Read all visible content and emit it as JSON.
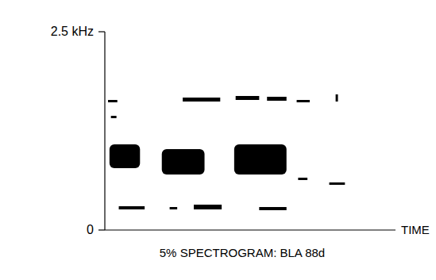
{
  "chart_data": {
    "type": "spectrogram",
    "title": "5% SPECTROGRAM: BLA 88d",
    "x_label": "TIME",
    "xlim": [
      0,
      100
    ],
    "ylim": [
      0,
      2.5
    ],
    "yticks": [
      0,
      {
        "value": 2.5,
        "label": "2.5 kHz"
      }
    ],
    "tick_labels": "y",
    "color": "#000000",
    "t_start": [
      1.6,
      19.6,
      44.5,
      4.8,
      22.3,
      30.6,
      53.1,
      1.1,
      2.1,
      26.8,
      45.0,
      55.8,
      66.0,
      79.4,
      66.5,
      77.2
    ],
    "t_end": [
      12.1,
      34.3,
      62.5,
      13.7,
      24.9,
      40.2,
      62.5,
      4.3,
      4.0,
      39.7,
      53.1,
      62.5,
      70.5,
      80.2,
      69.7,
      82.6
    ],
    "f_low": [
      0.78,
      0.7,
      0.7,
      0.26,
      0.26,
      0.26,
      0.25,
      1.61,
      1.41,
      1.62,
      1.64,
      1.63,
      1.61,
      1.62,
      0.63,
      0.57
    ],
    "f_high": [
      1.08,
      1.02,
      1.08,
      0.3,
      0.29,
      0.32,
      0.29,
      1.64,
      1.44,
      1.67,
      1.69,
      1.68,
      1.64,
      1.71,
      0.66,
      0.6
    ]
  }
}
